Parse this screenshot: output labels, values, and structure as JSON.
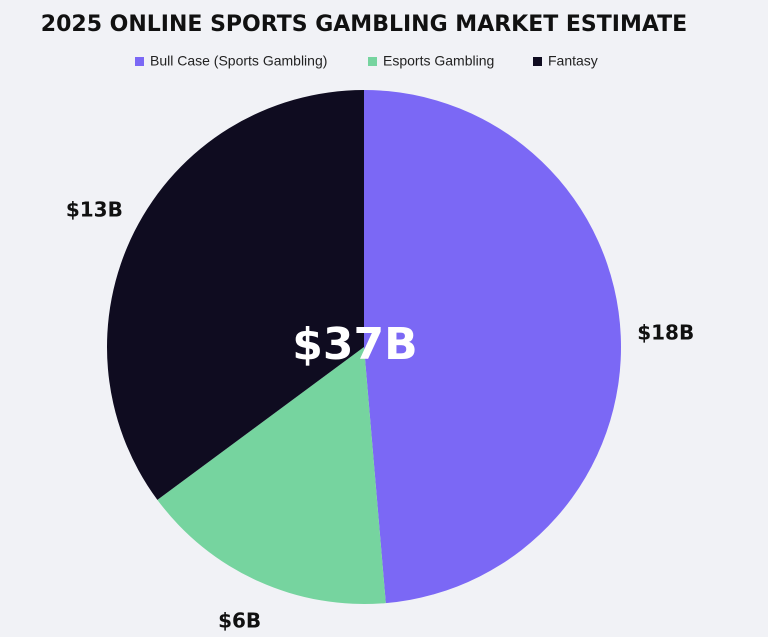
{
  "chart_data": {
    "type": "pie",
    "title": "2025 ONLINE SPORTS GAMBLING MARKET ESTIMATE",
    "categories": [
      "Bull Case (Sports Gambling)",
      "Esports Gambling",
      "Fantasy"
    ],
    "values": [
      18,
      6,
      13
    ],
    "value_labels": [
      "$18B",
      "$6B",
      "$13B"
    ],
    "colors": [
      "#7b68f5",
      "#76d49f",
      "#0f0c20"
    ],
    "center_label": "$37B"
  }
}
